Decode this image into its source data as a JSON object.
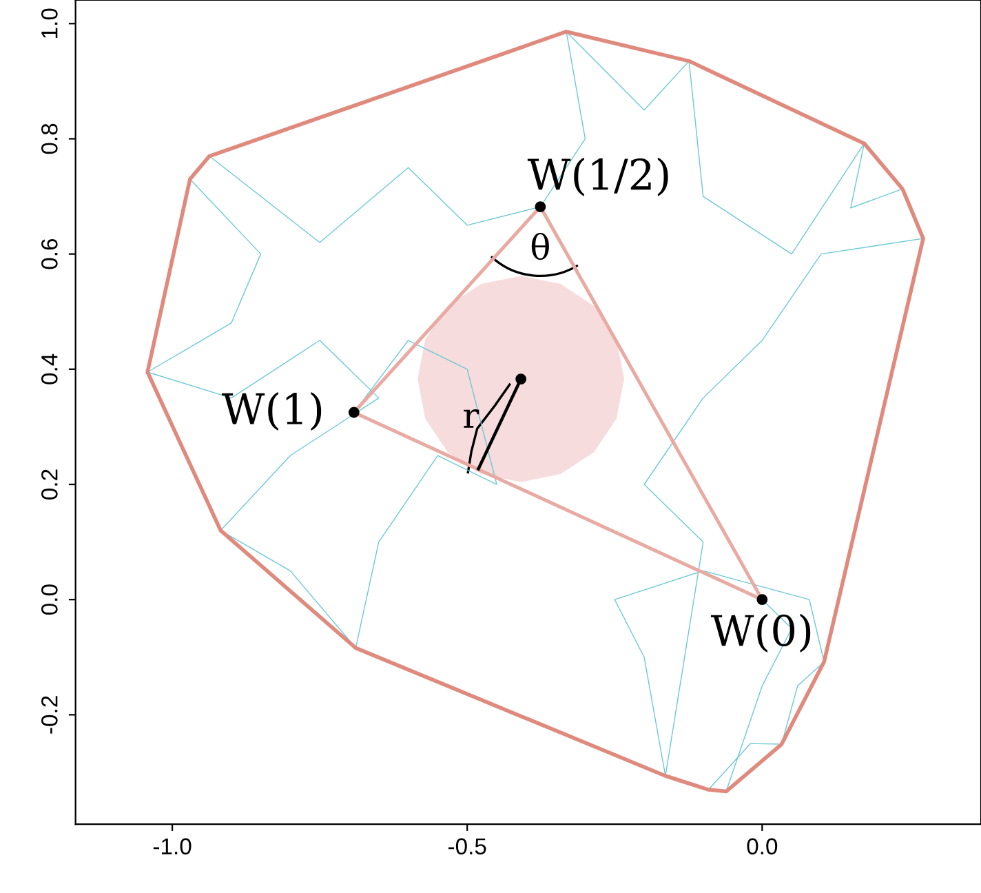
{
  "chart_data": {
    "type": "line",
    "series": [
      {
        "color": "#6cc8d6",
        "x": [
          0,
          0.05,
          0.0,
          -0.061,
          -0.091,
          -0.02,
          0.033,
          0.06,
          0.105,
          0.08,
          -0.1,
          -0.25,
          -0.2,
          -0.164,
          -0.1,
          -0.2,
          -0.1,
          0.0,
          0.1,
          0.273,
          0.238,
          0.15,
          0.173,
          0.05,
          -0.1,
          -0.124,
          -0.2,
          -0.332,
          -0.3,
          -0.376,
          -0.5,
          -0.6,
          -0.75,
          -0.937,
          -0.97,
          -0.85,
          -0.9,
          -1.042,
          -0.9,
          -0.75,
          -0.65,
          -0.8,
          -0.918,
          -0.8,
          -0.689,
          -0.65,
          -0.55,
          -0.45,
          -0.5,
          -0.6,
          -0.692
        ],
        "values": [
          0,
          -0.05,
          -0.15,
          -0.333,
          -0.33,
          -0.25,
          -0.251,
          -0.15,
          -0.108,
          0.0,
          0.05,
          0.0,
          -0.1,
          -0.306,
          0.1,
          0.2,
          0.35,
          0.45,
          0.6,
          0.627,
          0.713,
          0.68,
          0.792,
          0.6,
          0.7,
          0.935,
          0.85,
          0.986,
          0.8,
          0.682,
          0.65,
          0.75,
          0.62,
          0.77,
          0.73,
          0.6,
          0.48,
          0.395,
          0.35,
          0.45,
          0.35,
          0.25,
          0.12,
          0.05,
          -0.084,
          0.1,
          0.25,
          0.2,
          0.4,
          0.45,
          0.325
        ]
      },
      {
        "color": "#e8aaa2",
        "x": [
          -0.692,
          -0.376,
          0
        ],
        "values": [
          0.325,
          0.682,
          0
        ]
      },
      {
        "color": "#e8aaa2",
        "x": [
          -0.692,
          0
        ],
        "values": [
          0.325,
          0
        ]
      },
      {
        "color": "#000000",
        "x": [
          -0.409,
          -0.481
        ],
        "values": [
          0.383,
          0.227
        ]
      },
      {
        "type": "scatter",
        "color": "#000000",
        "x": [
          0,
          -0.376,
          -0.692,
          -0.409
        ],
        "values": [
          0,
          0.682,
          0.325,
          0.383
        ]
      },
      {
        "type": "area",
        "color": "#f6dcdc",
        "x": [
          -0.234,
          -0.247,
          -0.285,
          -0.342,
          -0.409,
          -0.476,
          -0.533,
          -0.571,
          -0.584,
          -0.571,
          -0.533,
          -0.476,
          -0.409,
          -0.342,
          -0.285,
          -0.247
        ],
        "values": [
          0.383,
          0.452,
          0.51,
          0.548,
          0.562,
          0.548,
          0.51,
          0.452,
          0.383,
          0.314,
          0.256,
          0.218,
          0.204,
          0.218,
          0.256,
          0.314
        ]
      }
    ],
    "annotations": [
      {
        "text": "W(1/2)",
        "x": -0.376,
        "y": 0.682
      },
      {
        "text": "W(0)",
        "x": 0,
        "y": 0
      },
      {
        "text": "W(1)",
        "x": -0.692,
        "y": 0.325
      },
      {
        "text": "θ",
        "x": -0.376,
        "y": 0.682
      },
      {
        "text": "r",
        "x": -0.445,
        "y": 0.305
      }
    ],
    "xlim": [
      -1.164,
      0.371
    ],
    "ylim": [
      -0.39,
      1.041
    ],
    "xticks": [
      {
        "value": -1.0,
        "label": "-1.0"
      },
      {
        "value": -0.5,
        "label": "-0.5"
      },
      {
        "value": 0.0,
        "label": "0.0"
      }
    ],
    "yticks": [
      {
        "value": -0.2,
        "label": "-0.2"
      },
      {
        "value": 0.0,
        "label": "0.0"
      },
      {
        "value": 0.2,
        "label": "0.2"
      },
      {
        "value": 0.4,
        "label": "0.4"
      },
      {
        "value": 0.6,
        "label": "0.6"
      },
      {
        "value": 0.8,
        "label": "0.8"
      },
      {
        "value": 1.0,
        "label": "1.0"
      }
    ],
    "grid": false,
    "legend": false
  }
}
